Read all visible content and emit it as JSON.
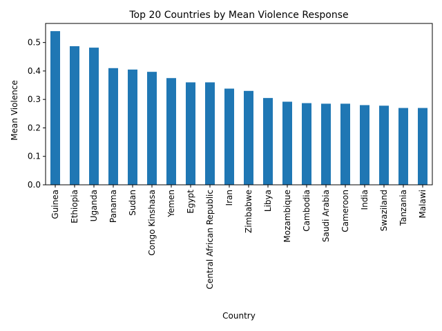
{
  "chart_data": {
    "type": "bar",
    "title": "Top 20 Countries by Mean Violence Response",
    "xlabel": "Country",
    "ylabel": "Mean Violence",
    "ylim": [
      0,
      0.567
    ],
    "yticks": [
      "0.0",
      "0.1",
      "0.2",
      "0.3",
      "0.4",
      "0.5"
    ],
    "bar_color": "#1f77b4",
    "grid": false,
    "categories": [
      "Guinea",
      "Ethiopia",
      "Uganda",
      "Panama",
      "Sudan",
      "Congo Kinshasa",
      "Yemen",
      "Egypt",
      "Central African Republic",
      "Iran",
      "Zimbabwe",
      "Libya",
      "Mozambique",
      "Cambodia",
      "Saudi Arabia",
      "Cameroon",
      "India",
      "Swaziland",
      "Tanzania",
      "Malawi"
    ],
    "values": [
      0.54,
      0.487,
      0.482,
      0.41,
      0.405,
      0.397,
      0.375,
      0.36,
      0.36,
      0.338,
      0.33,
      0.305,
      0.292,
      0.287,
      0.285,
      0.285,
      0.28,
      0.278,
      0.27,
      0.27
    ]
  }
}
